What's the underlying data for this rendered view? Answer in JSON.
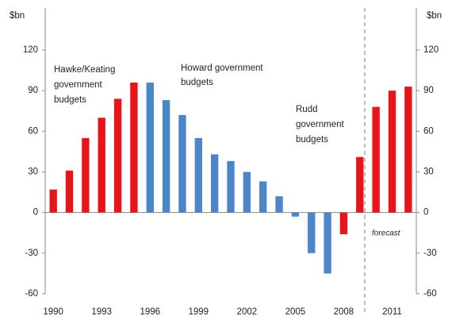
{
  "chart_data": {
    "type": "bar",
    "ylabel": "$bn",
    "y2label": "$bn",
    "categories": [
      "1990",
      null,
      null,
      "1993",
      null,
      null,
      "1996",
      null,
      null,
      "1999",
      null,
      null,
      "2002",
      null,
      null,
      "2005",
      null,
      null,
      "2008",
      null,
      null,
      "2011",
      null
    ],
    "values": [
      17,
      31,
      55,
      70,
      84,
      96,
      96,
      83,
      72,
      55,
      43,
      38,
      30,
      23,
      12,
      -3,
      -30,
      -45,
      -16,
      41,
      78,
      90,
      93
    ],
    "colors": [
      "#e8141a",
      "#e8141a",
      "#e8141a",
      "#e8141a",
      "#e8141a",
      "#e8141a",
      "#4a86c8",
      "#4a86c8",
      "#4a86c8",
      "#4a86c8",
      "#4a86c8",
      "#4a86c8",
      "#4a86c8",
      "#4a86c8",
      "#4a86c8",
      "#4a86c8",
      "#4a86c8",
      "#4a86c8",
      "#e8141a",
      "#e8141a",
      "#e8141a",
      "#e8141a",
      "#e8141a"
    ],
    "ylim": [
      -60,
      120
    ],
    "yticks": [
      -60,
      -30,
      0,
      30,
      60,
      90,
      120
    ],
    "y2lim": [
      -60,
      120
    ],
    "y2ticks": [
      -60,
      -30,
      0,
      30,
      60,
      90,
      120
    ],
    "grid": false,
    "annotations": [
      {
        "lines": [
          "Hawke/Keating",
          "government",
          "budgets"
        ]
      },
      {
        "lines": [
          "Howard government",
          "budgets"
        ]
      },
      {
        "lines": [
          "Rudd",
          "government",
          "budgets"
        ]
      },
      {
        "lines": [
          "forecast"
        ]
      }
    ]
  }
}
